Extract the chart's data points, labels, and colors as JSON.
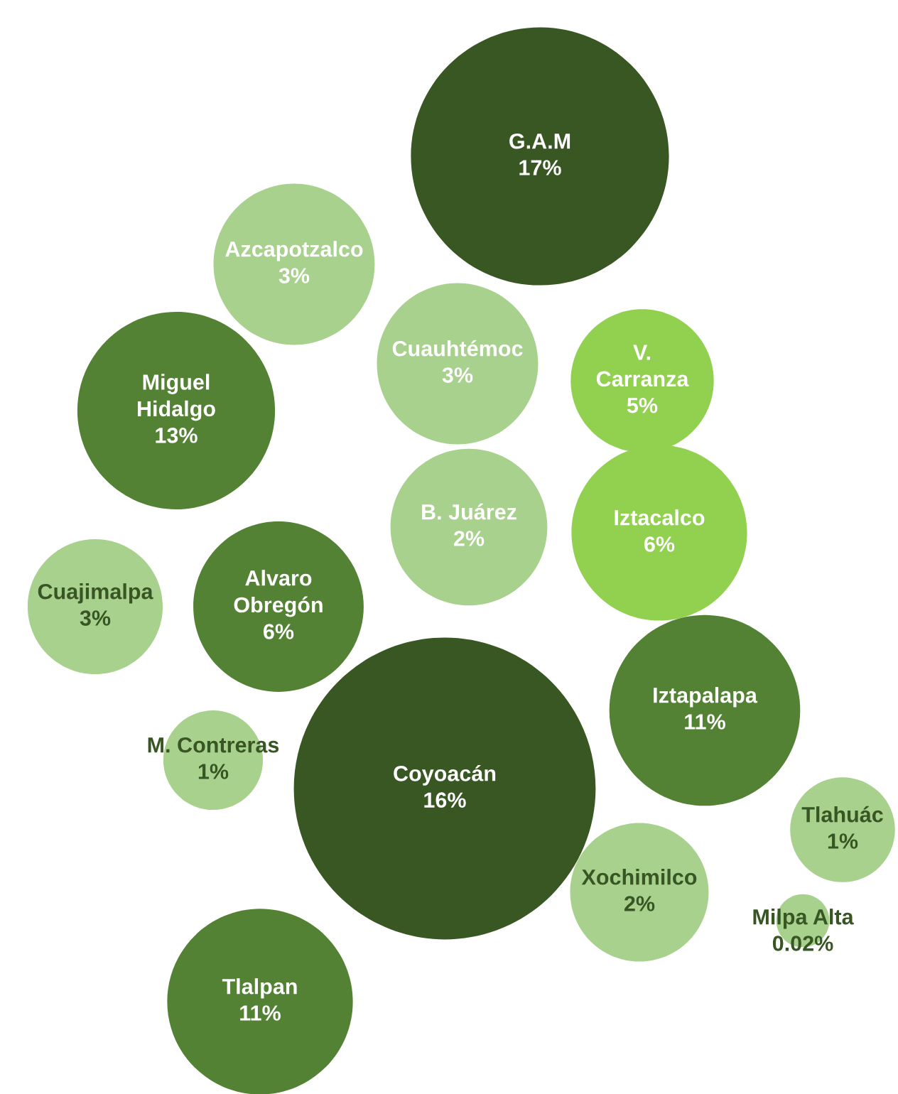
{
  "chart_data": {
    "type": "other",
    "categories": [
      "G.A.M",
      "Azcapotzalco",
      "Cuauhtémoc",
      "V.\nCarranza",
      "Miguel\nHidalgo",
      "B. Juárez",
      "Iztacalco",
      "Cuajimalpa",
      "Alvaro\nObregón",
      "Iztapalapa",
      "M. Contreras",
      "Coyoacán",
      "Tlahuác",
      "Xochimilco",
      "Milpa Alta",
      "Tlalpan"
    ],
    "values": [
      17,
      3,
      3,
      5,
      13,
      2,
      6,
      3,
      6,
      11,
      1,
      16,
      1,
      2,
      0.02,
      11
    ],
    "value_labels": [
      "17%",
      "3%",
      "3%",
      "5%",
      "13%",
      "2%",
      "6%",
      "3%",
      "6%",
      "11%",
      "1%",
      "16%",
      "1%",
      "2%",
      "0.02%",
      "11%"
    ],
    "colors": [
      "#385723",
      "#a9d18e",
      "#a9d18e",
      "#92d050",
      "#548235",
      "#a9d18e",
      "#92d050",
      "#a9d18e",
      "#548235",
      "#548235",
      "#a9d18e",
      "#385723",
      "#a9d18e",
      "#a9d18e",
      "#a9d18e",
      "#548235"
    ]
  }
}
